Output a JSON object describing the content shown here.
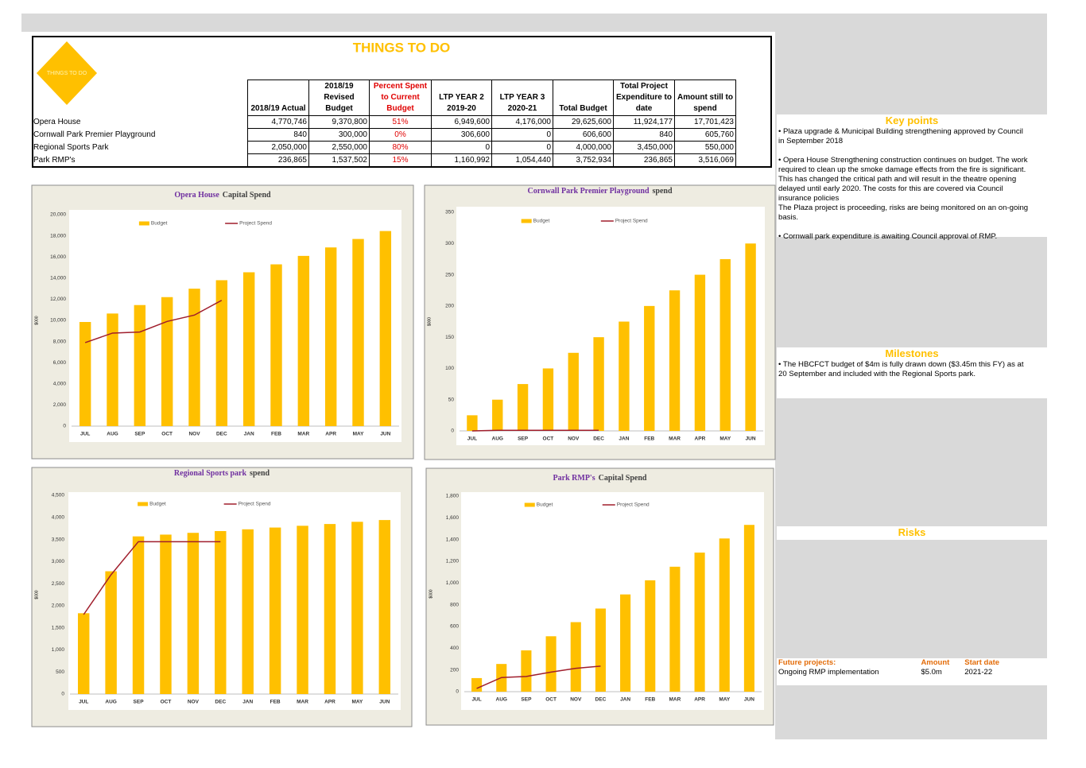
{
  "title": "THINGS TO DO",
  "logo": "THINGS TO DO",
  "table": {
    "columns": [
      [
        "2018/19 Actual"
      ],
      [
        "2018/19",
        "Revised",
        "Budget"
      ],
      [
        "Percent Spent",
        "to Current",
        "Budget"
      ],
      [
        "LTP YEAR 2",
        "2019-20"
      ],
      [
        "LTP YEAR 3",
        "2020-21"
      ],
      [
        "Total Budget"
      ],
      [
        "Total Project",
        "Expenditure to",
        "date"
      ],
      [
        "Amount still to",
        "spend"
      ]
    ],
    "rows": [
      [
        "Opera House",
        "4,770,746",
        "9,370,800",
        "51%",
        "6,949,600",
        "4,176,000",
        "29,625,600",
        "11,924,177",
        "17,701,423"
      ],
      [
        "Cornwall Park Premier Playground",
        "840",
        "300,000",
        "0%",
        "306,600",
        "0",
        "606,600",
        "840",
        "605,760"
      ],
      [
        "Regional Sports Park",
        "2,050,000",
        "2,550,000",
        "80%",
        "0",
        "0",
        "4,000,000",
        "3,450,000",
        "550,000"
      ],
      [
        "Park RMP's",
        "236,865",
        "1,537,502",
        "15%",
        "1,160,992",
        "1,054,440",
        "3,752,934",
        "236,865",
        "3,516,069"
      ]
    ]
  },
  "chart_data": [
    {
      "type": "bar",
      "title": {
        "highlight": "Opera House",
        "rest": "Capital Spend"
      },
      "y_label": "$000",
      "categories": [
        "JUL",
        "AUG",
        "SEP",
        "OCT",
        "NOV",
        "DEC",
        "JAN",
        "FEB",
        "MAR",
        "APR",
        "MAY",
        "JUN"
      ],
      "series": [
        {
          "name": "Budget",
          "type": "bar",
          "color": "#ffc000",
          "values": [
            9850,
            10650,
            11450,
            12200,
            13000,
            13800,
            14550,
            15300,
            16100,
            16900,
            17700,
            18450
          ]
        },
        {
          "name": "Project Spend",
          "type": "line",
          "color": "#a01e2c",
          "values": [
            7900,
            8800,
            8900,
            9900,
            10500,
            11900,
            null,
            null,
            null,
            null,
            null,
            null
          ]
        }
      ],
      "ylim": [
        0,
        20000
      ],
      "yticks": [
        0,
        {
          "value": 2000,
          "label": "2,000"
        },
        {
          "value": 4000,
          "label": "4,000"
        },
        {
          "value": 6000,
          "label": "6,000"
        },
        {
          "value": 8000,
          "label": "8,000"
        },
        {
          "value": 10000,
          "label": "10,000"
        },
        {
          "value": 12000,
          "label": "12,000"
        },
        {
          "value": 14000,
          "label": "14,000"
        },
        {
          "value": 16000,
          "label": "16,000"
        },
        {
          "value": 18000,
          "label": "18,000"
        },
        {
          "value": 20000,
          "label": "20,000"
        }
      ]
    },
    {
      "type": "bar",
      "title": {
        "highlight": "Cornwall Park Premier Playground",
        "rest": "spend"
      },
      "y_label": "$000",
      "categories": [
        "JUL",
        "AUG",
        "SEP",
        "OCT",
        "NOV",
        "DEC",
        "JAN",
        "FEB",
        "MAR",
        "APR",
        "MAY",
        "JUN"
      ],
      "series": [
        {
          "name": "Budget",
          "type": "bar",
          "color": "#ffc000",
          "values": [
            25,
            50,
            75,
            100,
            125,
            150,
            175,
            200,
            225,
            250,
            275,
            300
          ]
        },
        {
          "name": "Project Spend",
          "type": "line",
          "color": "#a01e2c",
          "values": [
            0,
            1,
            1,
            1,
            1,
            1,
            null,
            null,
            null,
            null,
            null,
            null
          ]
        }
      ],
      "ylim": [
        0,
        350
      ],
      "yticks": [
        0,
        50,
        100,
        150,
        200,
        250,
        300,
        350
      ]
    },
    {
      "type": "bar",
      "title": {
        "highlight": "Regional Sports park",
        "rest": "spend"
      },
      "y_label": "$000",
      "categories": [
        "JUL",
        "AUG",
        "SEP",
        "OCT",
        "NOV",
        "DEC",
        "JAN",
        "FEB",
        "MAR",
        "APR",
        "MAY",
        "JUN"
      ],
      "series": [
        {
          "name": "Budget",
          "type": "bar",
          "color": "#ffc000",
          "values": [
            1830,
            2780,
            3570,
            3610,
            3650,
            3690,
            3730,
            3770,
            3810,
            3850,
            3900,
            3940
          ]
        },
        {
          "name": "Project Spend",
          "type": "line",
          "color": "#a01e2c",
          "values": [
            1800,
            2700,
            3450,
            3450,
            3450,
            3450,
            null,
            null,
            null,
            null,
            null,
            null
          ]
        }
      ],
      "ylim": [
        0,
        4500
      ],
      "yticks": [
        0,
        500,
        {
          "value": 1000,
          "label": "1,000"
        },
        {
          "value": 1500,
          "label": "1,500"
        },
        {
          "value": 2000,
          "label": "2,000"
        },
        {
          "value": 2500,
          "label": "2,500"
        },
        {
          "value": 3000,
          "label": "3,000"
        },
        {
          "value": 3500,
          "label": "3,500"
        },
        {
          "value": 4000,
          "label": "4,000"
        },
        {
          "value": 4500,
          "label": "4,500"
        }
      ]
    },
    {
      "type": "bar",
      "title": {
        "highlight": "Park RMP's",
        "rest": "Capital Spend"
      },
      "y_label": "$000",
      "categories": [
        "JUL",
        "AUG",
        "SEP",
        "OCT",
        "NOV",
        "DEC",
        "JAN",
        "FEB",
        "MAR",
        "APR",
        "MAY",
        "JUN"
      ],
      "series": [
        {
          "name": "Budget",
          "type": "bar",
          "color": "#ffc000",
          "values": [
            125,
            255,
            380,
            510,
            640,
            765,
            895,
            1025,
            1150,
            1280,
            1410,
            1535
          ]
        },
        {
          "name": "Project Spend",
          "type": "line",
          "color": "#a01e2c",
          "values": [
            30,
            130,
            140,
            180,
            215,
            235,
            null,
            null,
            null,
            null,
            null,
            null
          ]
        }
      ],
      "ylim": [
        0,
        1800
      ],
      "yticks": [
        0,
        200,
        400,
        600,
        800,
        {
          "value": 1000,
          "label": "1,000"
        },
        {
          "value": 1200,
          "label": "1,200"
        },
        {
          "value": 1400,
          "label": "1,400"
        },
        {
          "value": 1600,
          "label": "1,600"
        },
        {
          "value": 1800,
          "label": "1,800"
        }
      ]
    }
  ],
  "key_points": {
    "heading": "Key points",
    "paragraphs": [
      "• Plaza upgrade & Municipal Building strengthening approved by Council in September 2018",
      "• Opera House Strengthening construction continues on budget. The work required to clean up the smoke damage effects from the fire is significant. This has changed the critical path and will result in the theatre opening delayed until early 2020. The costs for this are covered via Council insurance policies",
      "The Plaza project is proceeding, risks are being monitored on an on-going basis.",
      "• Cornwall park expenditure is awaiting Council approval of RMP."
    ]
  },
  "milestones": {
    "heading": "Milestones",
    "paragraphs": [
      "• The HBCFCT budget of $4m is fully drawn down ($3.45m this FY) as at 20 September and included with the Regional Sports park."
    ]
  },
  "risks": {
    "heading": "Risks"
  },
  "future_projects": {
    "headers": [
      "Future projects:",
      "Amount",
      "Start date"
    ],
    "rows": [
      [
        "Ongoing RMP implementation",
        "$5.0m",
        "2021-22"
      ]
    ]
  }
}
